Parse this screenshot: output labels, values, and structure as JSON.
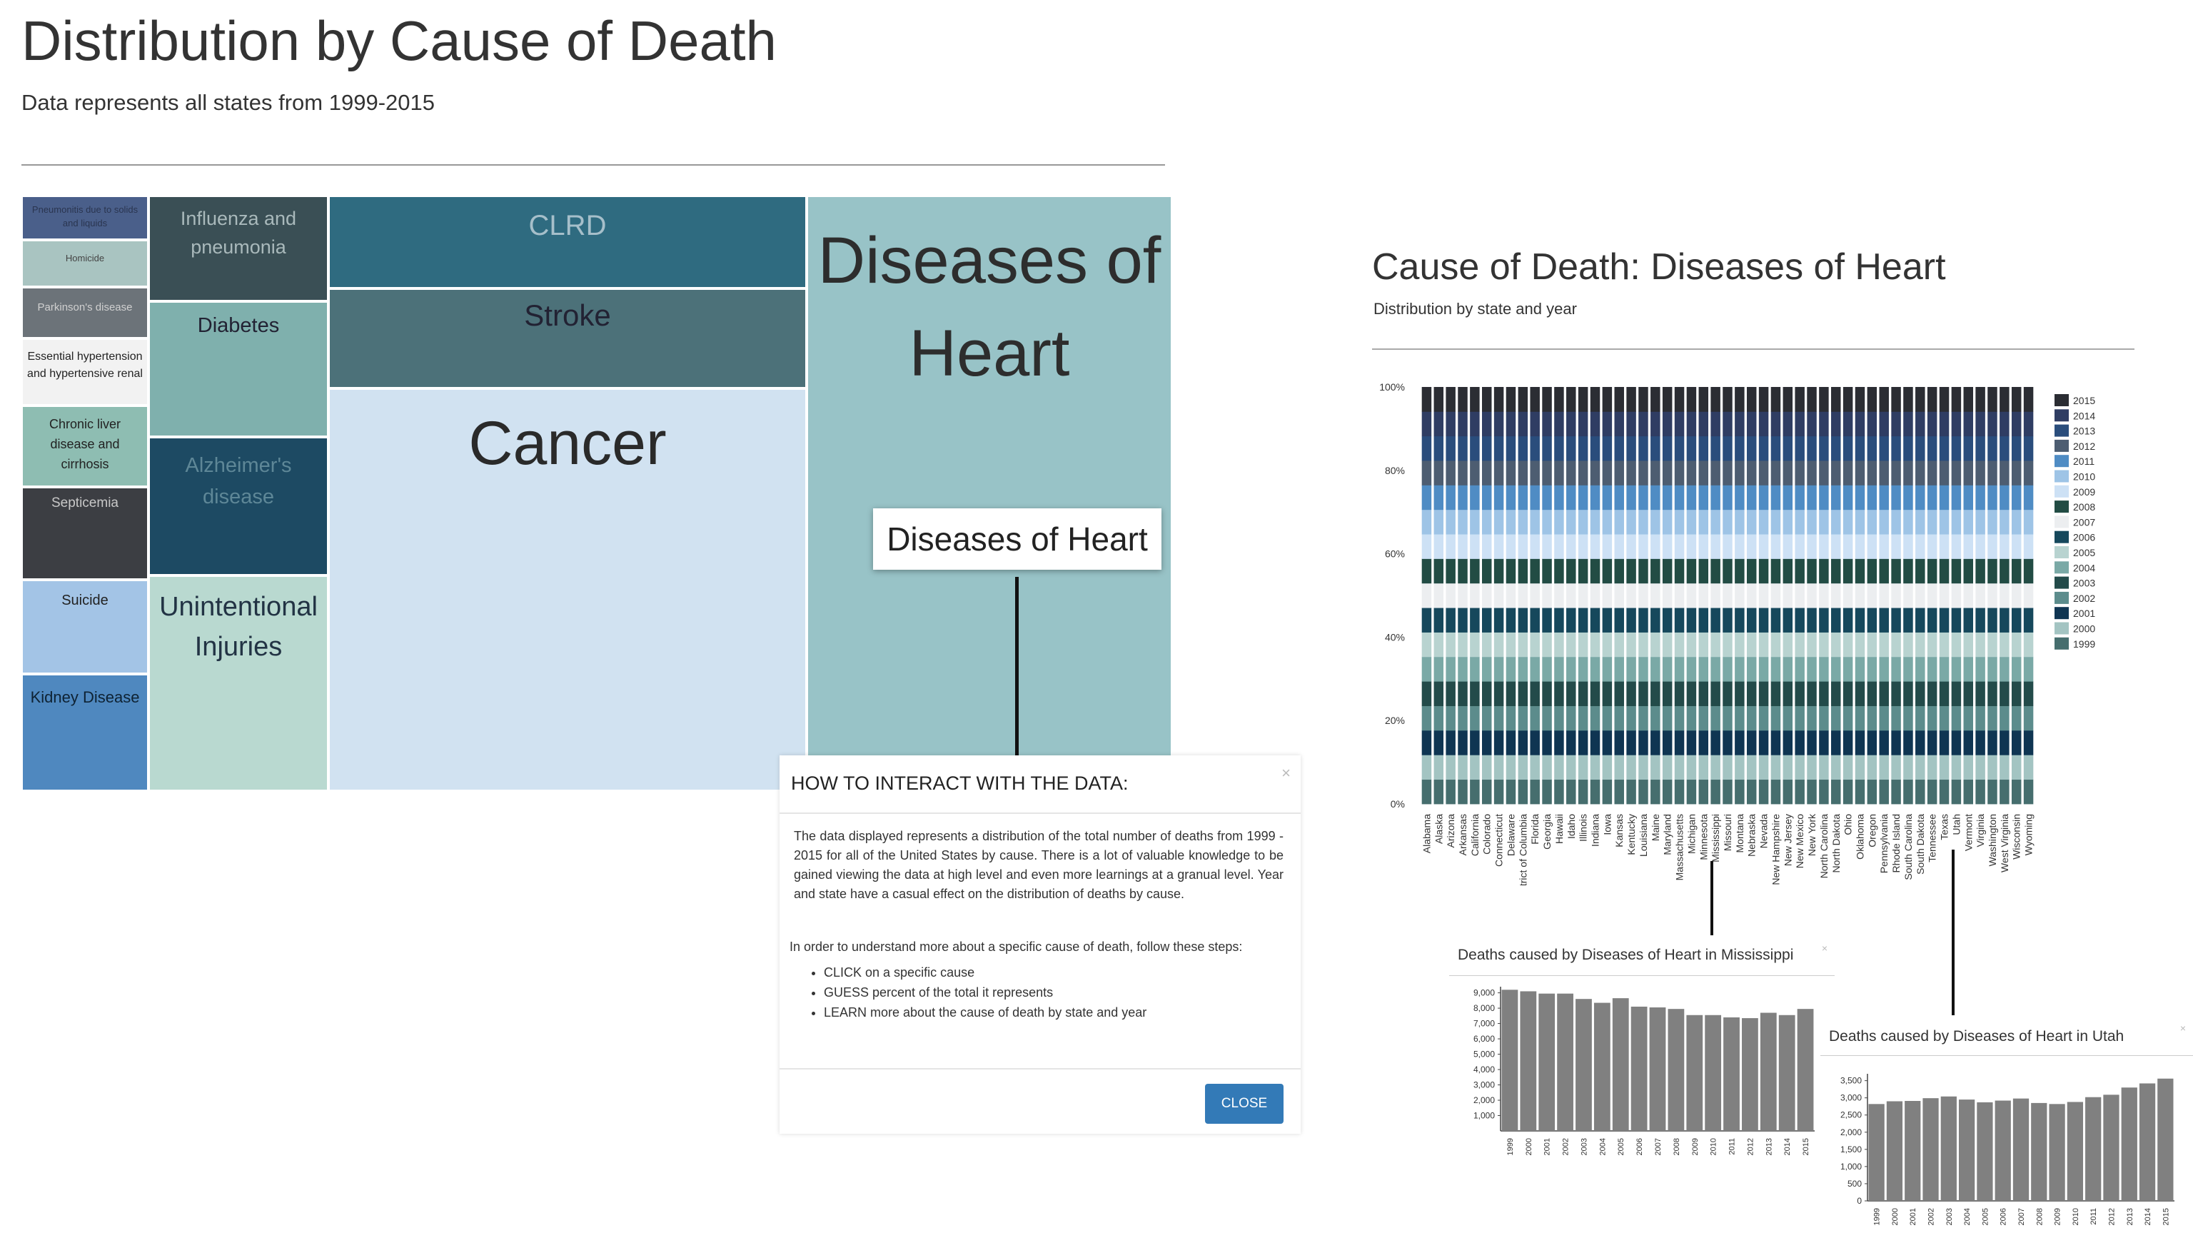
{
  "main": {
    "title": "Distribution by Cause of Death",
    "subtitle": "Data represents all states from 1999-2015"
  },
  "treemap": {
    "tiles": [
      {
        "label": "Pneumonitis due to solids and liquids",
        "color": "#4a5f8a"
      },
      {
        "label": "Homicide",
        "color": "#a9c4c1"
      },
      {
        "label": "Parkinson's disease",
        "color": "#6c7379"
      },
      {
        "label": "Essential hypertension and hypertensive renal",
        "color": "#f2f2f2"
      },
      {
        "label": "Chronic liver disease and cirrhosis",
        "color": "#8ebdb2"
      },
      {
        "label": "Septicemia",
        "color": "#3c3e43"
      },
      {
        "label": "Suicide",
        "color": "#a3c4e6"
      },
      {
        "label": "Kidney Disease",
        "color": "#4f88bf"
      },
      {
        "label": "Influenza and pneumonia",
        "color": "#3a4f55"
      },
      {
        "label": "Diabetes",
        "color": "#7fb0ad"
      },
      {
        "label": "Alzheimer's disease",
        "color": "#1d4a63"
      },
      {
        "label": "Unintentional Injuries",
        "color": "#b9d9d0"
      },
      {
        "label": "CLRD",
        "color": "#2f6b80"
      },
      {
        "label": "Stroke",
        "color": "#4c7179"
      },
      {
        "label": "Cancer",
        "color": "#d1e2f1"
      },
      {
        "label": "Diseases of Heart",
        "color": "#98c3c7"
      }
    ],
    "tooltip": "Diseases of Heart"
  },
  "modal": {
    "title": "HOW TO INTERACT WITH THE DATA:",
    "close_x": "×",
    "body": "The data displayed represents a distribution of the total number of deaths from 1999 - 2015 for all of the United States by cause. There is a lot of valuable knowledge to be gained viewing the data at high level and even more learnings at a granual level. Year and state have a casual effect on the distribution of deaths by cause.",
    "steps_intro": "In order to understand more about a specific cause of death, follow these steps:",
    "steps": [
      "CLICK on a specific cause",
      "GUESS percent of the total it represents",
      "LEARN more about the cause of death by state and year"
    ],
    "close_button": "CLOSE"
  },
  "colors": {
    "years": [
      "#466e6e",
      "#a3c4c2",
      "#0f3552",
      "#5c8c8c",
      "#234b4a",
      "#7aa9a6",
      "#b8d3d0",
      "#16485c",
      "#eceef0",
      "#224c44",
      "#cde1f5",
      "#9ec4e6",
      "#4f8cc4",
      "#4d5d71",
      "#2a4d7c",
      "#2f3d63",
      "#2b2d33"
    ]
  },
  "chart_data": [
    {
      "type": "bar",
      "stacked": "percent",
      "title": "Cause of Death: Diseases of Heart",
      "subtitle": "Distribution by state and year",
      "y_ticks": [
        "0%",
        "20%",
        "40%",
        "60%",
        "80%",
        "100%"
      ],
      "ylim": [
        0,
        100
      ],
      "legend_placement": "right",
      "legend": [
        "2015",
        "2014",
        "2013",
        "2012",
        "2011",
        "2010",
        "2009",
        "2008",
        "2007",
        "2006",
        "2005",
        "2004",
        "2003",
        "2002",
        "2001",
        "2000",
        "1999"
      ],
      "series_order_bottom_to_top": [
        "1999",
        "2000",
        "2001",
        "2002",
        "2003",
        "2004",
        "2005",
        "2006",
        "2007",
        "2008",
        "2009",
        "2010",
        "2011",
        "2012",
        "2013",
        "2014",
        "2015"
      ],
      "categories": [
        "Alabama",
        "Alaska",
        "Arizona",
        "Arkansas",
        "California",
        "Colorado",
        "Connecticut",
        "Delaware",
        "District of Columbia",
        "Florida",
        "Georgia",
        "Hawaii",
        "Idaho",
        "Illinois",
        "Indiana",
        "Iowa",
        "Kansas",
        "Kentucky",
        "Louisiana",
        "Maine",
        "Maryland",
        "Massachusetts",
        "Michigan",
        "Minnesota",
        "Mississippi",
        "Missouri",
        "Montana",
        "Nebraska",
        "Nevada",
        "New Hampshire",
        "New Jersey",
        "New Mexico",
        "New York",
        "North Carolina",
        "North Dakota",
        "Ohio",
        "Oklahoma",
        "Oregon",
        "Pennsylvania",
        "Rhode Island",
        "South Carolina",
        "South Dakota",
        "Tennessee",
        "Texas",
        "Utah",
        "Vermont",
        "Virginia",
        "Washington",
        "West Virginia",
        "Wisconsin",
        "Wyoming"
      ]
    },
    {
      "type": "bar",
      "title": "Deaths caused by Diseases of Heart in Mississippi",
      "close_x": "×",
      "categories": [
        "1999",
        "2000",
        "2001",
        "2002",
        "2003",
        "2004",
        "2005",
        "2006",
        "2007",
        "2008",
        "2009",
        "2010",
        "2011",
        "2012",
        "2013",
        "2014",
        "2015"
      ],
      "values": [
        9200,
        9100,
        8950,
        8950,
        8600,
        8350,
        8650,
        8100,
        8050,
        7950,
        7550,
        7550,
        7400,
        7350,
        7700,
        7550,
        7950
      ],
      "y_ticks": [
        "1,000",
        "2,000",
        "3,000",
        "4,000",
        "5,000",
        "6,000",
        "7,000",
        "8,000",
        "9,000"
      ],
      "ylim": [
        0,
        9400
      ]
    },
    {
      "type": "bar",
      "title": "Deaths caused by Diseases of Heart in Utah",
      "close_x": "×",
      "categories": [
        "1999",
        "2000",
        "2001",
        "2002",
        "2003",
        "2004",
        "2005",
        "2006",
        "2007",
        "2008",
        "2009",
        "2010",
        "2011",
        "2012",
        "2013",
        "2014",
        "2015"
      ],
      "values": [
        2820,
        2900,
        2910,
        2990,
        3040,
        2950,
        2870,
        2920,
        2980,
        2850,
        2820,
        2880,
        3020,
        3090,
        3300,
        3420,
        3560
      ],
      "y_ticks": [
        "0",
        "500",
        "1,000",
        "1,500",
        "2,000",
        "2,500",
        "3,000",
        "3,500"
      ],
      "ylim": [
        0,
        3700
      ]
    }
  ]
}
